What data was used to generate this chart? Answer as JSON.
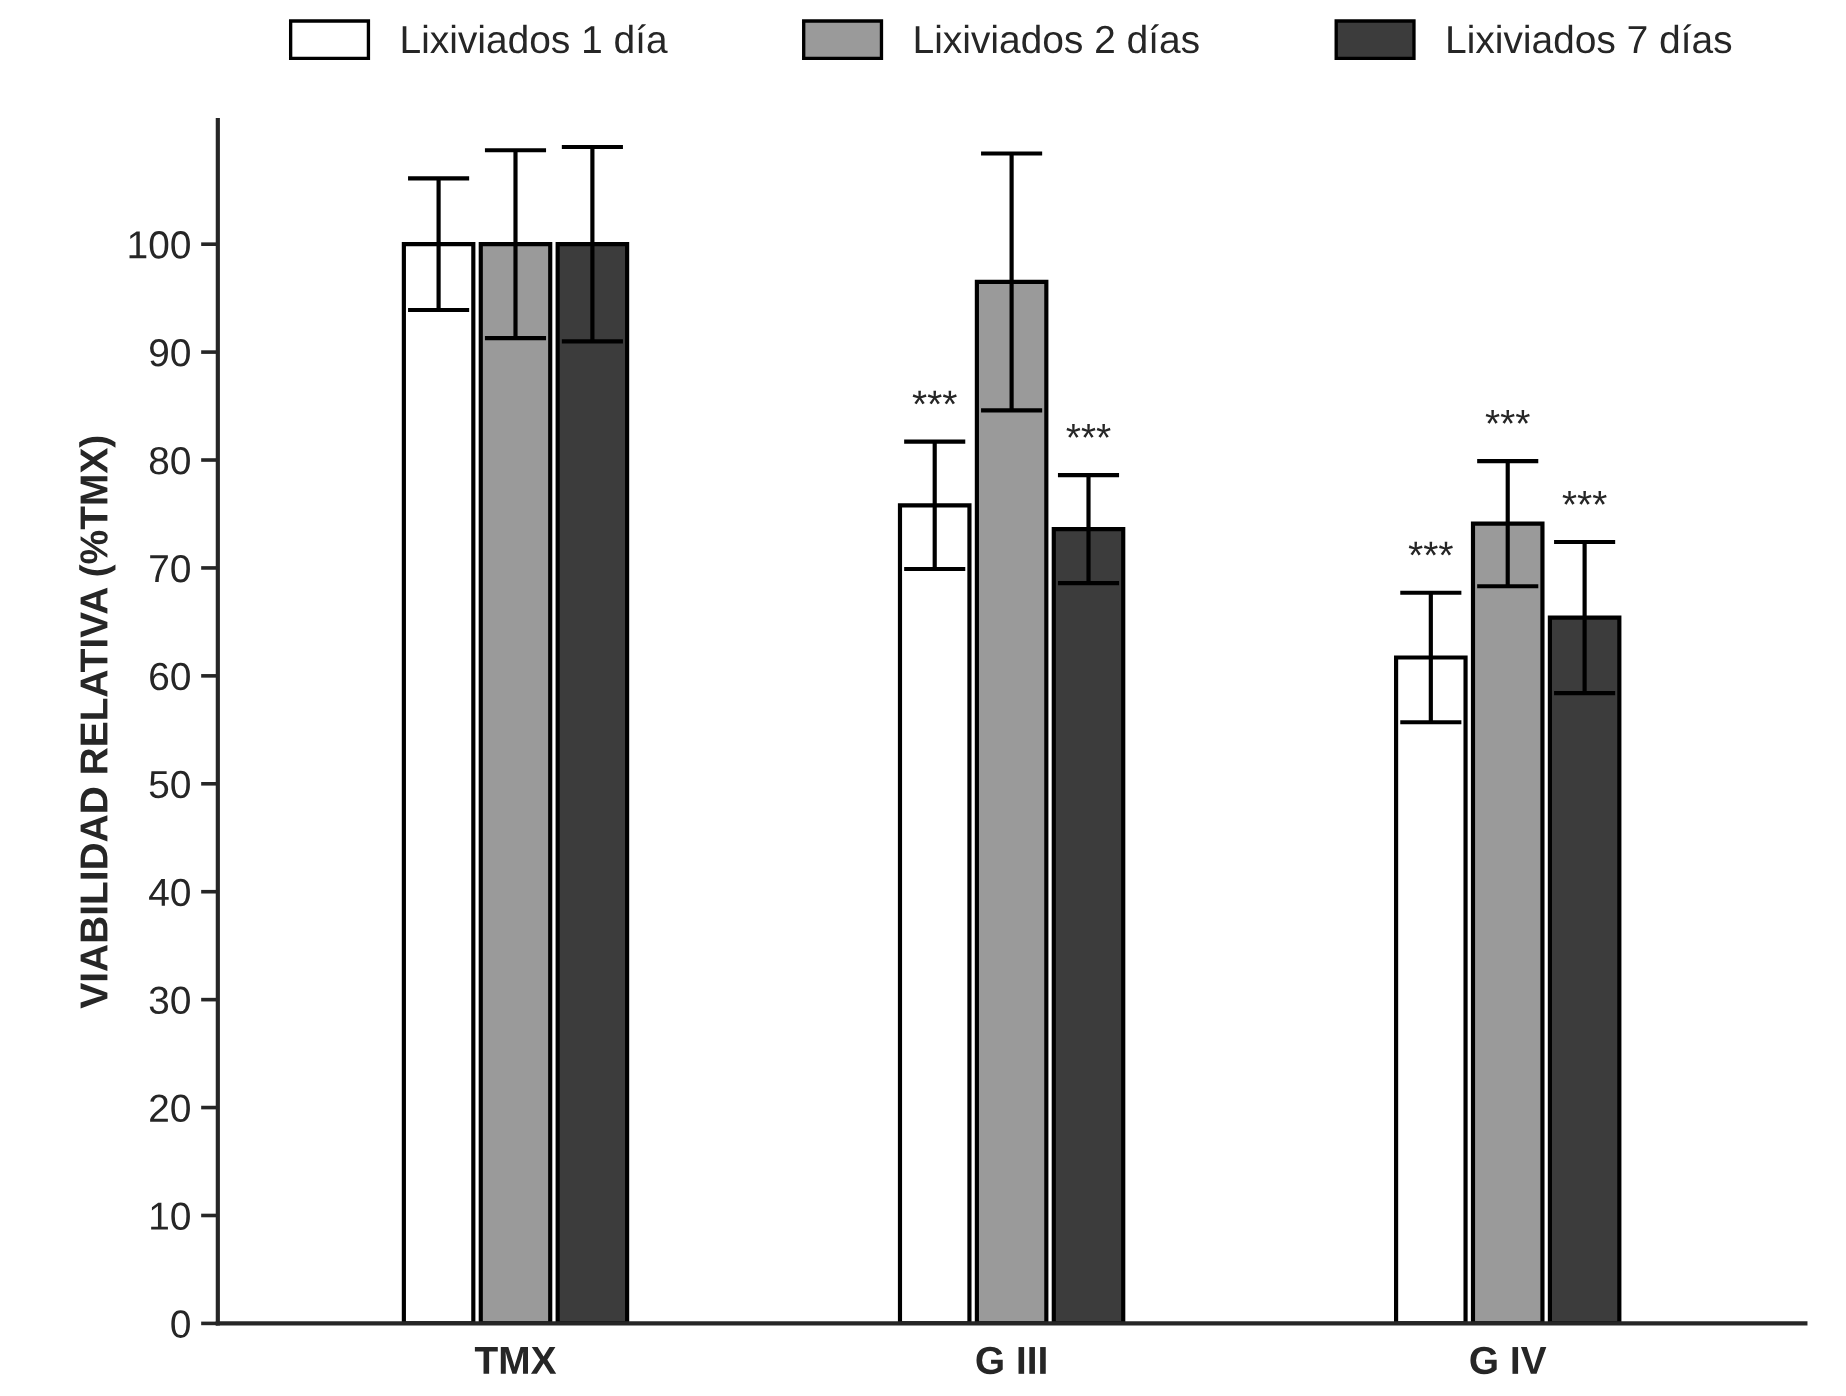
{
  "chart_data": {
    "type": "bar",
    "ylabel": "VIABILIDAD RELATIVA (%TMX)",
    "categories": [
      "TMX",
      "G III",
      "G IV"
    ],
    "series": [
      {
        "name": "Lixiviados 1 día",
        "color": "#ffffff",
        "values": [
          100,
          75.8,
          61.7
        ],
        "errors": [
          6.1,
          5.9,
          6.0
        ],
        "value_labels": [
          null,
          "***",
          "***"
        ]
      },
      {
        "name": "Lixiviados 2 días",
        "color": "#9a9a9a",
        "values": [
          100,
          96.5,
          74.1
        ],
        "errors": [
          8.7,
          11.9,
          5.8
        ],
        "value_labels": [
          null,
          null,
          "***"
        ]
      },
      {
        "name": "Lixiviados 7 días",
        "color": "#3c3c3c",
        "values": [
          100,
          73.6,
          65.4
        ],
        "errors": [
          9.0,
          5.0,
          7.0
        ],
        "value_labels": [
          null,
          "***",
          "***"
        ]
      }
    ],
    "ylim": [
      0,
      111.5
    ],
    "yticks": [
      0,
      10,
      20,
      30,
      40,
      50,
      60,
      70,
      80,
      90,
      100
    ],
    "grid": false,
    "legend": "top"
  }
}
